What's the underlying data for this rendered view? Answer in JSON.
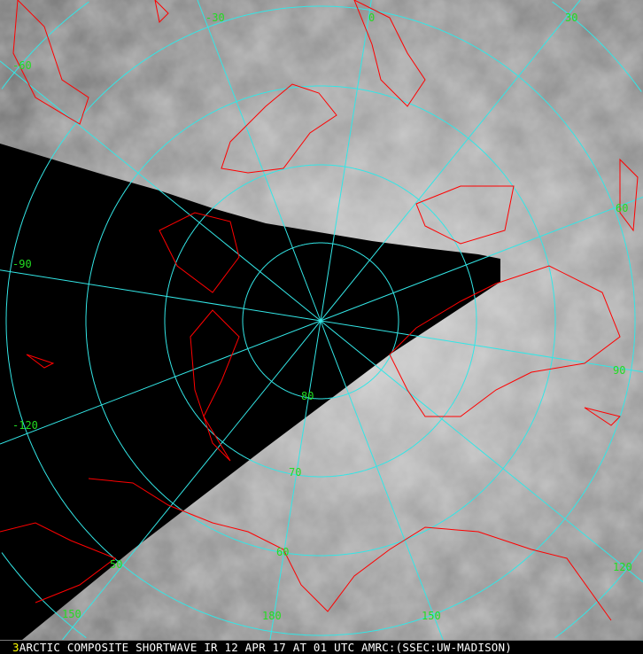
{
  "caption": {
    "frame_number": "3",
    "text": "ARCTIC COMPOSITE SHORTWAVE IR 12 APR 17 AT 01 UTC AMRC:(SSEC:UW-MADISON)"
  },
  "longitude_labels": [
    "-30",
    "0",
    "30",
    "-60",
    "-90",
    "-120",
    "150",
    "180",
    "150",
    "120",
    "90",
    "60"
  ],
  "latitude_labels": [
    "80",
    "70",
    "60",
    "50"
  ],
  "colors": {
    "grid": "#33e6e6",
    "coastline": "#ff0000",
    "labels": "#22dd22",
    "caption_number": "#ffff00",
    "no_data": "#000000"
  }
}
